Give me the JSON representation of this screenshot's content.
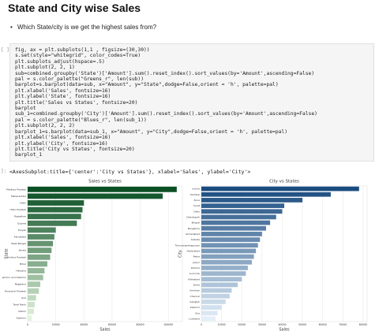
{
  "header": {
    "title": "State and City wise Sales"
  },
  "bullet": "Which State/city is we get the highest sales from?",
  "code": [
    "fig, ax = plt.subplots(1,1 , figsize=(30,30))",
    "s.set(style=\"whitegrid\", color_codes=True)",
    "plt.subplots_adjust(hspace=.5)",
    "plt.subplot(2, 2, 1)",
    "sub=combined.groupby('State')['Amount'].sum().reset_index().sort_values(by='Amount',ascending=False)",
    "pal = s.color_palette(\"Greens_r\", len(sub))",
    "barplot=s.barplot(data=sub, x=\"Amount\", y=\"State\",dodge=False,orient = 'h', palette=pal)",
    "plt.xlabel('Sales', fontsize=16)",
    "plt.ylabel('State', fontsize=16)",
    "plt.title('Sales vs States', fontsize=20)",
    "barplot",
    "sub_1=combined.groupby('City')['Amount'].sum().reset_index().sort_values(by='Amount',ascending=False)",
    "pal = s.color_palette(\"Blues_r\", len(sub_1))",
    "plt.subplot(2, 2, 2)",
    "barplot_1=s.barplot(data=sub_1, x=\"Amount\", y=\"City\",dodge=False,orient = 'h', palette=pal)",
    "plt.xlabel('Sales', fontsize=16)",
    "plt.ylabel('City', fontsize=16)",
    "plt.title('City vs States', fontsize=20)",
    "barplot_1"
  ],
  "output": "<AxesSubplot:title={'center':'City vs States'}, xlabel='Sales', ylabel='City'>",
  "chart_data": [
    {
      "type": "bar",
      "orientation": "horizontal",
      "title": "Sales vs States",
      "xlabel": "Sales",
      "ylabel": "State",
      "categories": [
        "Madhya Pradesh",
        "Maharashtra",
        "Delhi",
        "Uttar Pradesh",
        "Rajasthan",
        "Gujarat",
        "Punjab",
        "Karnataka",
        "West Bengal",
        "Kerala",
        "Andhra Pradesh",
        "Bihar",
        "Haryana",
        "Jammu and Kashmir",
        "Nagaland",
        "Himachal Pradesh",
        "Goa",
        "Tamil Nadu",
        "Sikkim",
        "Kashmir"
      ],
      "values": [
        106000,
        96000,
        40000,
        39000,
        38000,
        35000,
        20000,
        19000,
        18000,
        17000,
        16000,
        14000,
        12000,
        11000,
        9000,
        8000,
        6000,
        5000,
        4500,
        3000
      ],
      "colors": [
        "#0b4f24",
        "#e2f3dc"
      ],
      "xlim": [
        0,
        110000
      ],
      "xticks": [
        0,
        20000,
        40000,
        60000,
        80000,
        100000
      ],
      "grid": true
    },
    {
      "type": "bar",
      "orientation": "horizontal",
      "title": "City vs States",
      "xlabel": "Sales",
      "ylabel": "City",
      "categories": [
        "Indore",
        "Mumbai",
        "Pune",
        "Surat",
        "Delhi",
        "Chandigarh",
        "Bhopal",
        "Bangalore",
        "Ahmedabad",
        "Kolkata",
        "Thiruvananthapuram",
        "Hyderabad",
        "Patna",
        "Jaipur",
        "Kohima",
        "Lucknow",
        "Allahabad",
        "Simla",
        "Amritsar",
        "Chennai",
        "Gangtok",
        "Kashmir",
        "Goa",
        "Ludhiana"
      ],
      "values": [
        78000,
        64000,
        50000,
        41000,
        40000,
        37000,
        34000,
        32000,
        30000,
        29000,
        28000,
        27000,
        26000,
        25000,
        23000,
        22000,
        20000,
        18000,
        15000,
        14000,
        12000,
        10000,
        8000,
        7000
      ],
      "colors": [
        "#1a4c80",
        "#e3eef8"
      ],
      "xlim": [
        0,
        82000
      ],
      "xticks": [
        0,
        10000,
        20000,
        30000,
        40000,
        50000,
        60000,
        70000,
        80000
      ],
      "grid": true
    }
  ]
}
